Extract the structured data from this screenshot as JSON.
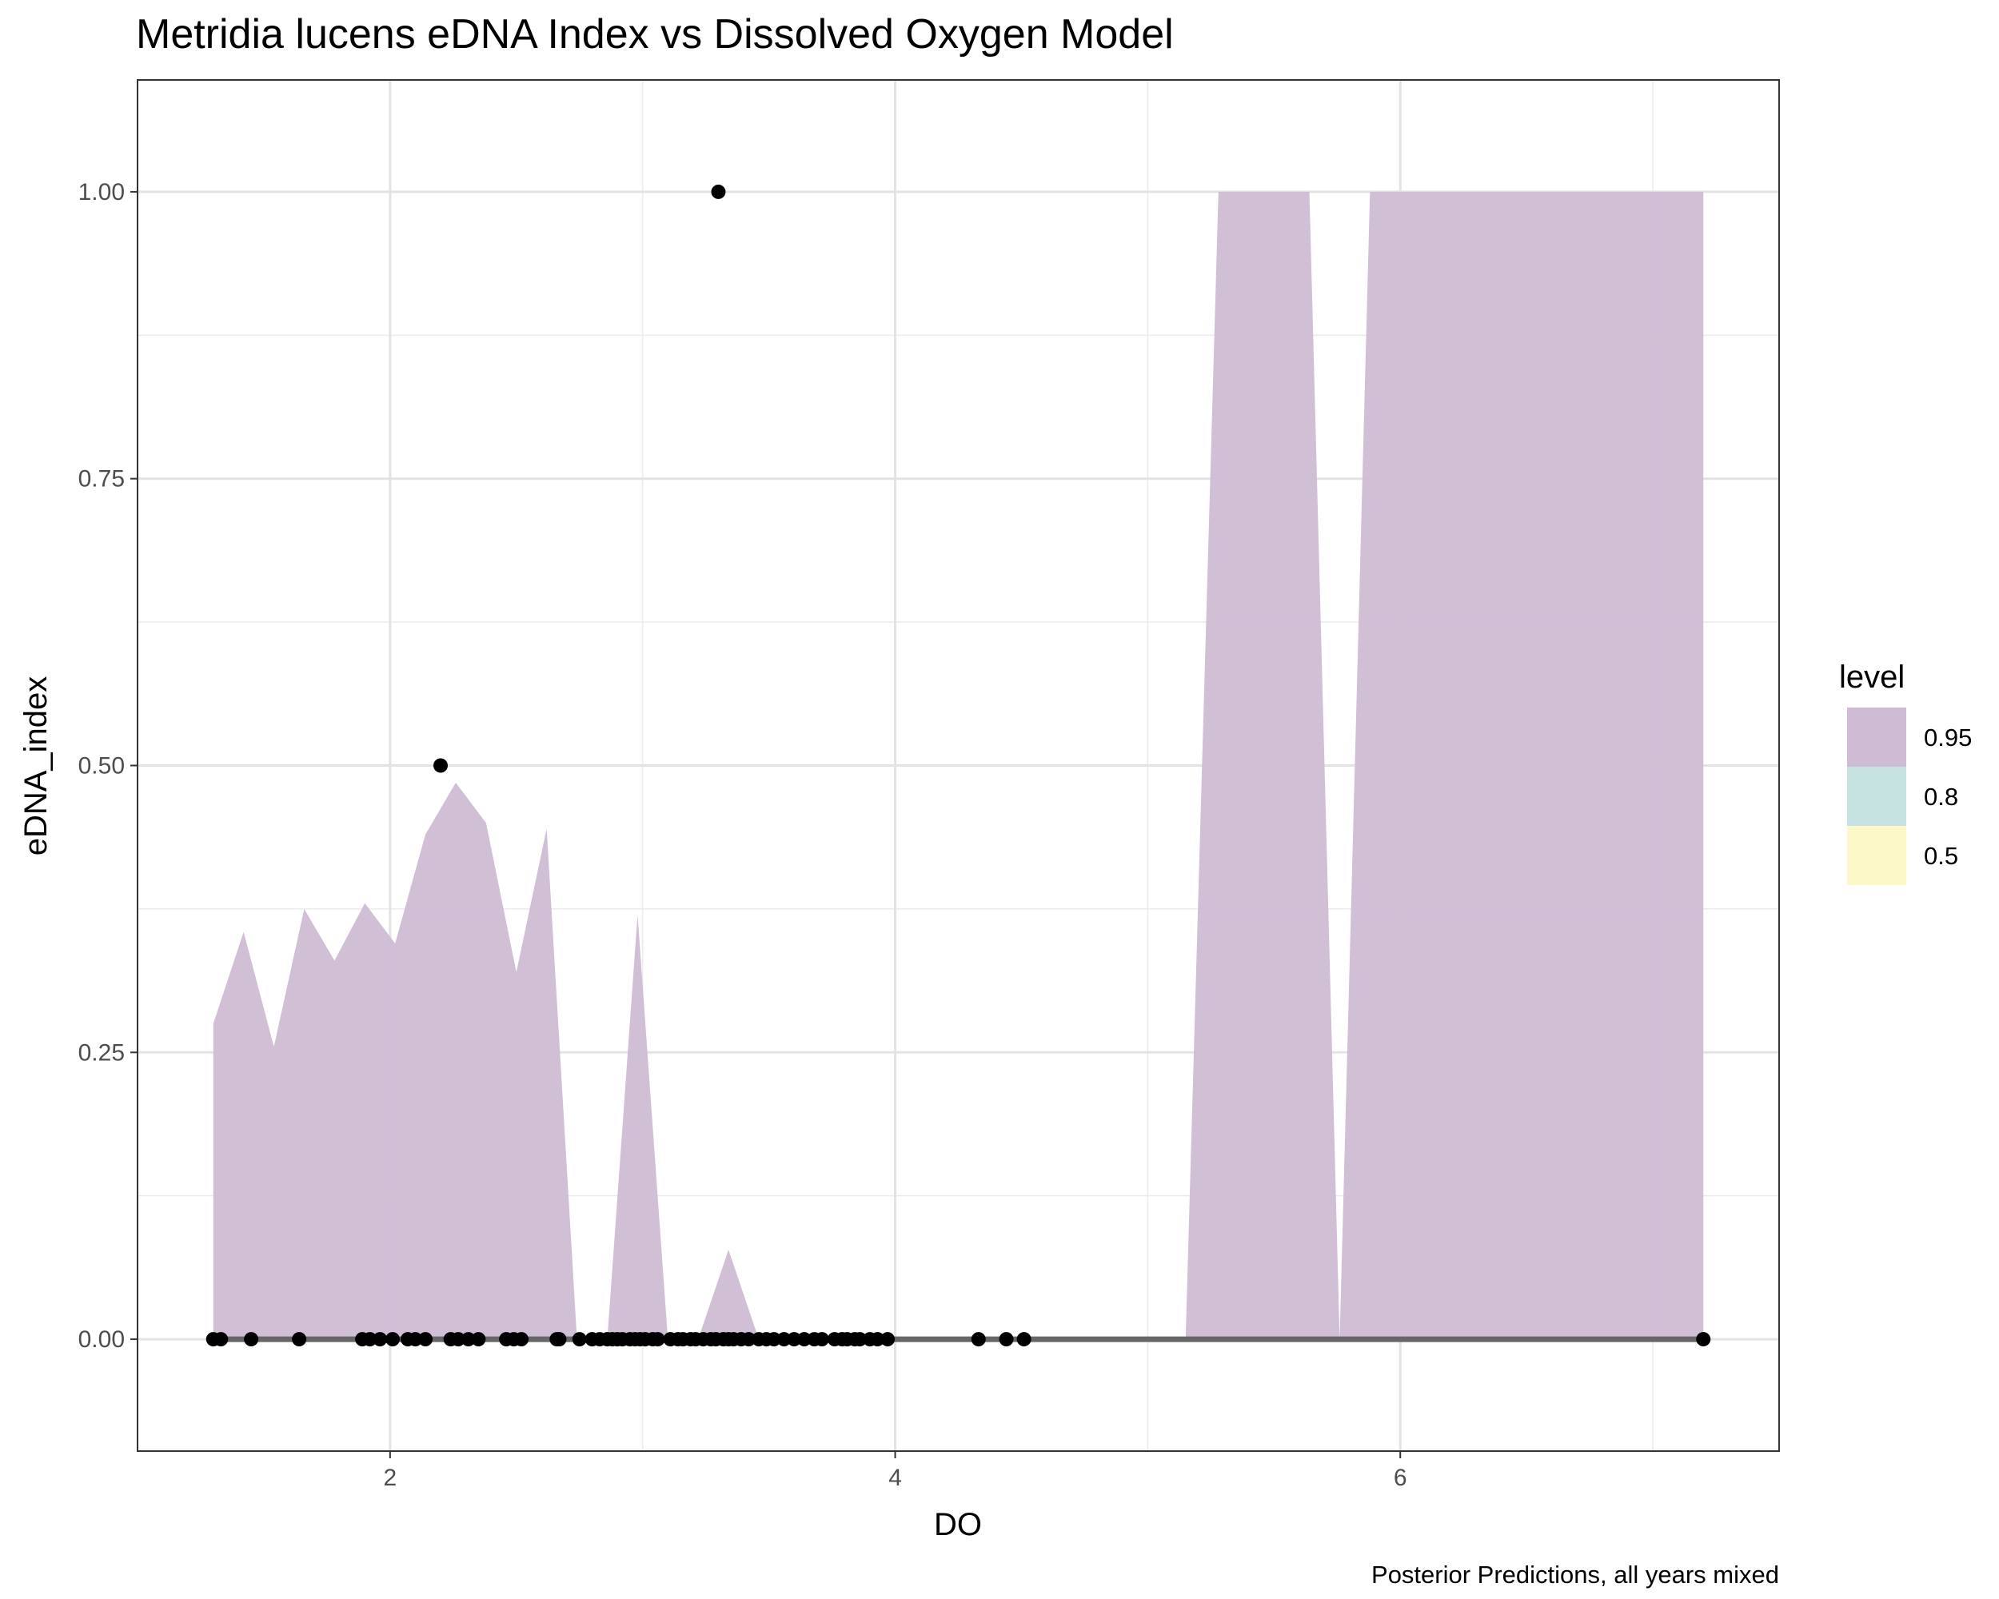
{
  "chart_data": {
    "type": "area",
    "title": "Metridia lucens eDNA Index vs Dissolved Oxygen Model",
    "caption": "Posterior Predictions, all years mixed",
    "xlabel": "DO",
    "ylabel": "eDNA_index",
    "xlim": [
      1.0,
      7.5
    ],
    "ylim": [
      -0.0975,
      1.0975
    ],
    "x_ticks": [
      2,
      4,
      6
    ],
    "x_tick_labels": [
      "2",
      "4",
      "6"
    ],
    "y_ticks": [
      0,
      0.25,
      0.5,
      0.75,
      1.0
    ],
    "y_tick_labels": [
      "0.00",
      "0.25",
      "0.50",
      "0.75",
      "1.00"
    ],
    "grid": true,
    "legend": {
      "title": "level",
      "position": "right",
      "entries": [
        {
          "label": "0.95",
          "color": "#cfbcd4"
        },
        {
          "label": "0.8",
          "color": "#c7e3e1"
        },
        {
          "label": "0.5",
          "color": "#fdf8c8"
        }
      ]
    },
    "ribbon_95": {
      "color": "#cfbcd4",
      "x": [
        1.3,
        1.42,
        1.54,
        1.66,
        1.78,
        1.9,
        2.02,
        2.14,
        2.26,
        2.38,
        2.5,
        2.62,
        2.74,
        2.86,
        2.98,
        3.1,
        3.22,
        3.34,
        3.46,
        5.15,
        5.28,
        5.64,
        5.76,
        5.88,
        7.2
      ],
      "upper": [
        0.275,
        0.355,
        0.255,
        0.375,
        0.33,
        0.38,
        0.345,
        0.44,
        0.485,
        0.45,
        0.32,
        0.445,
        0.0,
        0.0,
        0.37,
        0.0,
        0.0,
        0.078,
        0.0,
        0.0,
        1.0,
        1.0,
        0.0,
        1.0,
        1.0
      ]
    },
    "median_line": {
      "color": "#666666",
      "x": [
        1.3,
        7.2
      ],
      "y": [
        0,
        0
      ]
    },
    "points": {
      "color": "#000000",
      "x": [
        1.3,
        1.33,
        1.45,
        1.64,
        1.89,
        1.92,
        1.96,
        2.01,
        2.07,
        2.1,
        2.14,
        2.24,
        2.27,
        2.31,
        2.35,
        2.46,
        2.49,
        2.52,
        2.66,
        2.67,
        2.75,
        2.8,
        2.83,
        2.86,
        2.88,
        2.9,
        2.92,
        2.95,
        2.97,
        2.99,
        3.01,
        3.04,
        3.06,
        3.11,
        3.14,
        3.16,
        3.19,
        3.21,
        3.24,
        3.27,
        3.29,
        3.32,
        3.34,
        3.36,
        3.39,
        3.42,
        3.46,
        3.49,
        3.52,
        3.56,
        3.6,
        3.64,
        3.68,
        3.71,
        3.76,
        3.79,
        3.81,
        3.84,
        3.86,
        3.9,
        3.93,
        3.97,
        4.33,
        4.44,
        4.51,
        7.2,
        2.2,
        3.3
      ],
      "y": [
        0,
        0,
        0,
        0,
        0,
        0,
        0,
        0,
        0,
        0,
        0,
        0,
        0,
        0,
        0,
        0,
        0,
        0,
        0,
        0,
        0,
        0,
        0,
        0,
        0,
        0,
        0,
        0,
        0,
        0,
        0,
        0,
        0,
        0,
        0,
        0,
        0,
        0,
        0,
        0,
        0,
        0,
        0,
        0,
        0,
        0,
        0,
        0,
        0,
        0,
        0,
        0,
        0,
        0,
        0,
        0,
        0,
        0,
        0,
        0,
        0,
        0,
        0,
        0,
        0,
        0,
        0.5,
        1.0
      ]
    }
  }
}
